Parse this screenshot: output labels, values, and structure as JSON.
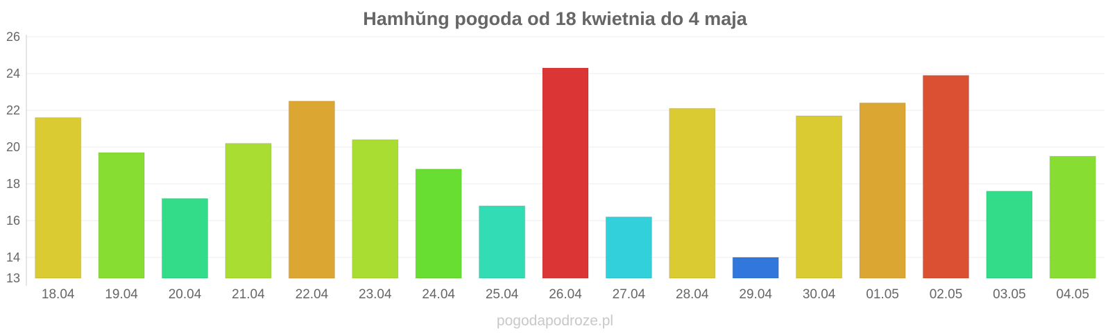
{
  "chart_data": {
    "type": "bar",
    "title": "Hamhŭng pogoda od 18 kwietnia do 4 maja",
    "categories": [
      "18.04",
      "19.04",
      "20.04",
      "21.04",
      "22.04",
      "23.04",
      "24.04",
      "25.04",
      "26.04",
      "27.04",
      "28.04",
      "29.04",
      "30.04",
      "01.05",
      "02.05",
      "03.05",
      "04.05"
    ],
    "values": [
      21.6,
      19.7,
      17.2,
      20.2,
      22.5,
      20.4,
      18.8,
      16.8,
      24.3,
      16.2,
      22.1,
      14.0,
      21.7,
      22.4,
      23.9,
      17.6,
      19.5
    ],
    "colors": [
      "#dbcb32",
      "#88dd32",
      "#32dc88",
      "#aadd32",
      "#dca632",
      "#aadd32",
      "#68dd32",
      "#32ddb5",
      "#db3535",
      "#32d0db",
      "#dbcb32",
      "#3277db",
      "#dbcb32",
      "#dca632",
      "#db5032",
      "#32dc88",
      "#88dd32"
    ],
    "ylim": [
      13,
      26
    ],
    "yticks": [
      13,
      14,
      16,
      18,
      20,
      22,
      24,
      26
    ],
    "xlabel": "",
    "ylabel": "",
    "grid": true,
    "legend": "none"
  },
  "watermark": "pogodapodroze.pl"
}
